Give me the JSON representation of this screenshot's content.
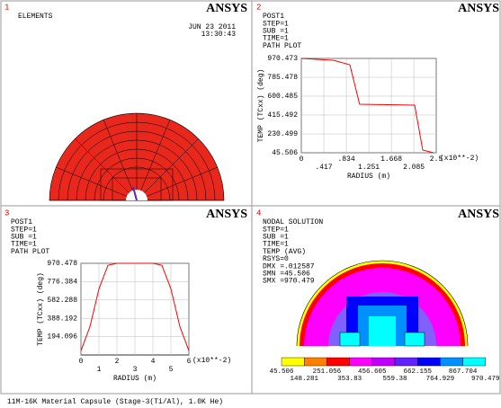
{
  "panels": [
    {
      "number": "1",
      "lines": [
        "ELEMENTS"
      ],
      "logo": "ANSYS",
      "date": "JUN 23 2011",
      "time": "13:30:43"
    },
    {
      "number": "2",
      "lines": [
        "POST1",
        "STEP=1",
        "SUB =1",
        "TIME=1",
        "PATH PLOT"
      ],
      "logo": "ANSYS"
    },
    {
      "number": "3",
      "lines": [
        "POST1",
        "STEP=1",
        "SUB =1",
        "TIME=1",
        "PATH PLOT"
      ],
      "logo": "ANSYS"
    },
    {
      "number": "4",
      "lines": [
        "NODAL SOLUTION",
        "STEP=1",
        "SUB =1",
        "TIME=1",
        "TEMP     (AVG)",
        "RSYS=0",
        "DMX =.012587",
        "SMN =45.506",
        "SMX =970.479"
      ],
      "logo": "ANSYS",
      "legend": {
        "labels": [
          45.506,
          148.281,
          251.056,
          353.83,
          456.605,
          559.38,
          662.155,
          764.929,
          867.704,
          970.479
        ],
        "colors": [
          "#ffff00",
          "#ff8000",
          "#ff0000",
          "#ff00ff",
          "#c000ff",
          "#6020ff",
          "#0000ff",
          "#0090ff",
          "#00ffff"
        ]
      }
    }
  ],
  "chart_data": [
    {
      "type": "line",
      "xlabel": "RADIUS (m)",
      "ylabel": "TEMP (TCxx) (deg)",
      "multiplier": "(x10**-2)",
      "color": "#ff0000",
      "grid": true,
      "x": [
        0,
        0.6,
        0.9,
        1.08,
        2.1,
        2.25,
        2.45
      ],
      "values": [
        970.473,
        952,
        908,
        521,
        512,
        72,
        45.506
      ],
      "xlim": [
        0,
        2.5
      ],
      "xticks": [
        0,
        {
          "value": 0.417,
          "label": ".417"
        },
        {
          "value": 0.834,
          "label": ".834"
        },
        1.251,
        1.668,
        2.085,
        2.5
      ],
      "ylim": [
        45.506,
        970.473
      ],
      "yticks": [
        45.506,
        230.499,
        415.492,
        600.485,
        785.478,
        970.473
      ]
    },
    {
      "type": "line",
      "xlabel": "RADIUS (m)",
      "ylabel": "TEMP (TCxx) (deg)",
      "multiplier": "(x10**-2)",
      "color": "#ff0000",
      "grid": true,
      "x": [
        0,
        0.5,
        1,
        1.5,
        2,
        4,
        4.5,
        5,
        5.5,
        6
      ],
      "values": [
        45,
        300,
        700,
        950,
        970,
        970,
        950,
        700,
        300,
        45
      ],
      "xlim": [
        0,
        6
      ],
      "xticks": [
        0,
        1,
        2,
        3,
        4,
        5,
        6
      ],
      "ylim": [
        0,
        970.478
      ],
      "yticks": [
        194.096,
        388.192,
        582.288,
        776.384,
        970.478
      ]
    }
  ],
  "caption": "11M-16K Material Capsule (Stage-3(Ti/Al), 1.0K He)"
}
